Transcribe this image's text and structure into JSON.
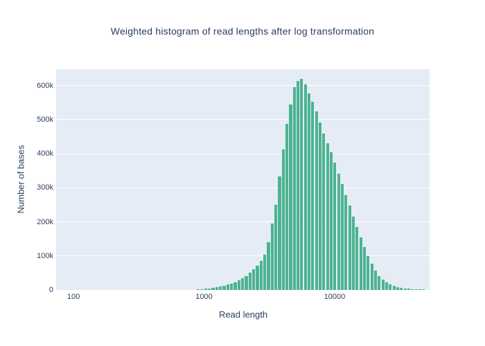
{
  "chart": {
    "title": "Weighted histogram of read lengths after log transformation",
    "font_color": "#2a3f5f",
    "paper_bgcolor": "#ffffff",
    "plot_bgcolor": "#e5ecf6",
    "grid_color": "#ffffff",
    "bar_color": "#4cb391"
  },
  "chart_data": {
    "type": "bar",
    "title": "Weighted histogram of read lengths after log transformation",
    "xlabel": "Read length",
    "ylabel": "Number of bases",
    "x_axis_type": "log",
    "xlim_log10": [
      1.867,
      4.727
    ],
    "ylim": [
      0,
      648000
    ],
    "grid": "horizontal-only",
    "legend": "none",
    "bar_width_fraction": 0.78,
    "x_ticks": [
      {
        "label": "100",
        "value": 100
      },
      {
        "label": "1000",
        "value": 1000
      },
      {
        "label": "10000",
        "value": 10000
      }
    ],
    "y_ticks": [
      {
        "label": "0",
        "value": 0
      },
      {
        "label": "100k",
        "value": 100000
      },
      {
        "label": "200k",
        "value": 200000
      },
      {
        "label": "300k",
        "value": 300000
      },
      {
        "label": "400k",
        "value": 400000
      },
      {
        "label": "500k",
        "value": 500000
      },
      {
        "label": "600k",
        "value": 600000
      }
    ],
    "x": [
      903,
      964,
      1029,
      1098,
      1172,
      1251,
      1335,
      1425,
      1521,
      1623,
      1732,
      1849,
      1973,
      2106,
      2247,
      2398,
      2560,
      2732,
      2916,
      3112,
      3322,
      3545,
      3783,
      4038,
      4310,
      4600,
      4909,
      5239,
      5592,
      5968,
      6370,
      6798,
      7256,
      7744,
      8265,
      8821,
      9414,
      10047,
      10723,
      11444,
      12215,
      13036,
      13913,
      14849,
      15848,
      16914,
      18052,
      19266,
      20562,
      21945,
      23422,
      24997,
      26679,
      28473,
      30388,
      32432,
      34614,
      36943,
      39427,
      42079,
      44910,
      47931
    ],
    "y": [
      2000,
      3000,
      4000,
      5000,
      6500,
      8000,
      10000,
      13000,
      16000,
      19000,
      23000,
      28000,
      34000,
      41000,
      50000,
      60000,
      72000,
      86000,
      103000,
      140000,
      196000,
      250000,
      333000,
      412000,
      487000,
      545000,
      596000,
      614000,
      619000,
      603000,
      577000,
      553000,
      524000,
      492000,
      459000,
      430000,
      405000,
      374000,
      342000,
      310000,
      278000,
      248000,
      215000,
      185000,
      154000,
      125000,
      99000,
      77000,
      57000,
      41000,
      30000,
      22000,
      16000,
      12000,
      9000,
      7000,
      5000,
      4000,
      3000,
      2500,
      2000,
      1500
    ]
  }
}
